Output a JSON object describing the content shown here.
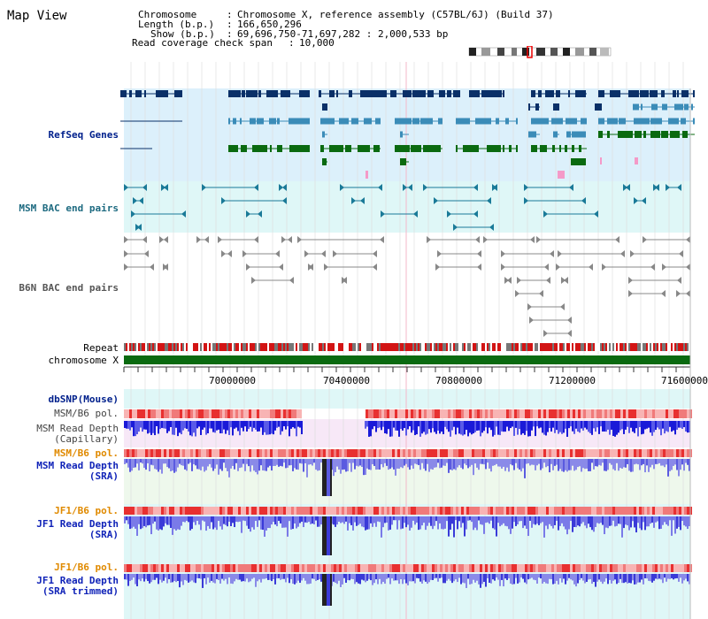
{
  "view_title": "Map View",
  "header": {
    "chromosome_label": "Chromosome",
    "chromosome_value": "Chromosome X, reference assembly (C57BL/6J) (Build 37)",
    "length_label": "Length (b.p.)",
    "length_value": "166,650,296",
    "show_label": "Show (b.p.)",
    "show_value": "69,696,750-71,697,282 : 2,000,533 bp",
    "coverage_label": "Read coverage check span",
    "coverage_value": "10,000"
  },
  "tracks": {
    "refseq": "RefSeq Genes",
    "msm_bac": "MSM BAC end pairs",
    "b6n_bac": "B6N BAC end pairs",
    "repeat": "Repeat",
    "chromosome": "chromosome X",
    "dbsnp": "dbSNP(Mouse)",
    "msm_b6_pol": "MSM/B6 pol.",
    "msm_depth_cap_1": "MSM Read Depth",
    "msm_depth_cap_2": "(Capillary)",
    "msm_b6_pol_2": "MSM/B6 pol.",
    "msm_depth_sra_1": "MSM Read Depth",
    "msm_depth_sra_2": "(SRA)",
    "jf1_b6_pol": "JF1/B6 pol.",
    "jf1_depth_sra_1": "JF1 Read Depth",
    "jf1_depth_sra_2": "(SRA)",
    "jf1_b6_pol_2": "JF1/B6 pol.",
    "jf1_depth_trim_1": "JF1 Read Depth",
    "jf1_depth_trim_2": "(SRA trimmed)"
  },
  "axis": {
    "ticks": [
      "70000000",
      "70400000",
      "70800000",
      "71200000",
      "71600000"
    ]
  },
  "colors": {
    "refseq_bg": "#dcf0fb",
    "msm_bg": "#dff7f7",
    "navy_gene": "#0a3068",
    "light_gene": "#3b8cb8",
    "green_gene": "#0a6a10",
    "pink": "#f49ac8",
    "repeat_red": "#d21414",
    "chrom_green": "#0a6a10",
    "depth_blue": "#2a2ad8",
    "depth_light": "#8a8ae8"
  }
}
